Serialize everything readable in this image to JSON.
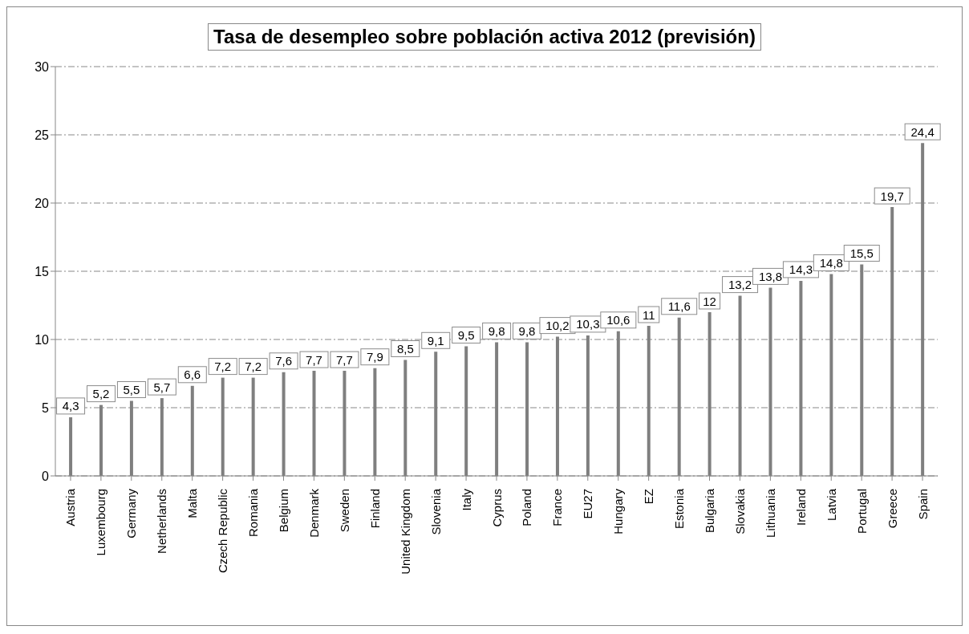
{
  "chart_data": {
    "type": "bar",
    "title": "Tasa de desempleo sobre población activa 2012 (previsión)",
    "categories": [
      "Austria",
      "Luxembourg",
      "Germany",
      "Netherlands",
      "Malta",
      "Czech Republic",
      "Romania",
      "Belgium",
      "Denmark",
      "Sweden",
      "Finland",
      "United Kingdom",
      "Slovenia",
      "Italy",
      "Cyprus",
      "Poland",
      "France",
      "EU27",
      "Hungary",
      "EZ",
      "Estonia",
      "Bulgaria",
      "Slovakia",
      "Lithuania",
      "Ireland",
      "Latvia",
      "Portugal",
      "Greece",
      "Spain"
    ],
    "values": [
      4.3,
      5.2,
      5.5,
      5.7,
      6.6,
      7.2,
      7.2,
      7.6,
      7.7,
      7.7,
      7.9,
      8.5,
      9.1,
      9.5,
      9.8,
      9.8,
      10.2,
      10.3,
      10.6,
      11,
      11.6,
      12,
      13.2,
      13.8,
      14.3,
      14.8,
      15.5,
      19.7,
      24.4
    ],
    "value_labels": [
      "4,3",
      "5,2",
      "5,5",
      "5,7",
      "6,6",
      "7,2",
      "7,2",
      "7,6",
      "7,7",
      "7,7",
      "7,9",
      "8,5",
      "9,1",
      "9,5",
      "9,8",
      "9,8",
      "10,2",
      "10,3",
      "10,6",
      "11",
      "11,6",
      "12",
      "13,2",
      "13,8",
      "14,3",
      "14,8",
      "15,5",
      "19,7",
      "24,4"
    ],
    "color": "#7f7f7f",
    "ylim": [
      0,
      30
    ],
    "yticks": [
      0,
      5,
      10,
      15,
      20,
      25,
      30
    ],
    "grid": "y"
  }
}
